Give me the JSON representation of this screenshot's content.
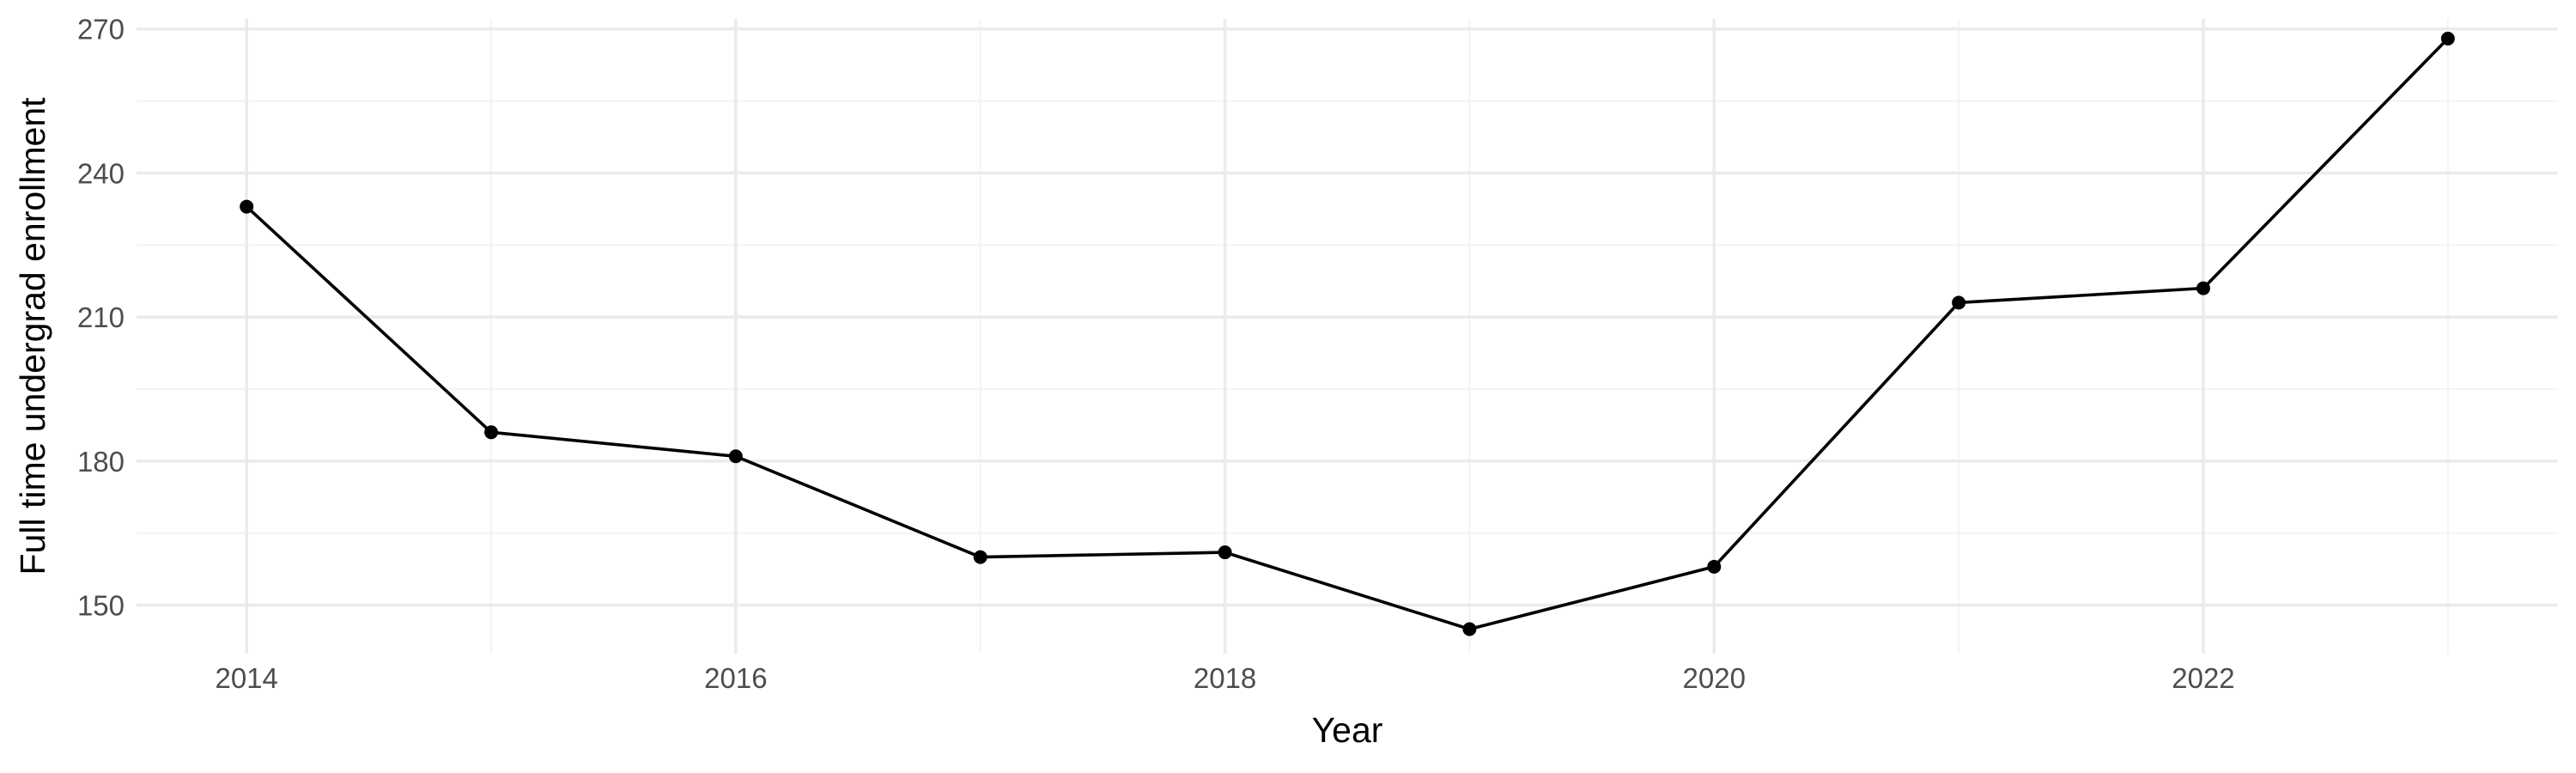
{
  "chart_data": {
    "type": "line",
    "title": "",
    "xlabel": "Year",
    "ylabel": "Full time undergrad enrollment",
    "x": [
      2014,
      2015,
      2016,
      2017,
      2018,
      2019,
      2020,
      2021,
      2022,
      2023
    ],
    "series": [
      {
        "values": [
          233,
          186,
          181,
          160,
          161,
          145,
          158,
          213,
          216,
          268
        ],
        "color": "#000000"
      }
    ],
    "xlim": [
      2013.55,
      2023.45
    ],
    "ylim": [
      139.9,
      272.1
    ],
    "x_major_ticks": [
      2014,
      2016,
      2018,
      2020,
      2022
    ],
    "x_minor_ticks": [
      2015,
      2017,
      2019,
      2021,
      2023
    ],
    "y_major_ticks": [
      150,
      180,
      210,
      240,
      270
    ],
    "y_minor_ticks": [
      165,
      195,
      225,
      255
    ],
    "x_tick_labels": [
      "2014",
      "2016",
      "2018",
      "2020",
      "2022"
    ],
    "y_tick_labels": [
      "150",
      "180",
      "210",
      "240",
      "270"
    ],
    "grid": true,
    "legend": "none",
    "colors": {
      "background": "#ffffff",
      "grid_major": "#ebebeb",
      "grid_minor": "#f2f2f2",
      "tick_text": "#4d4d4d",
      "line": "#000000"
    }
  }
}
